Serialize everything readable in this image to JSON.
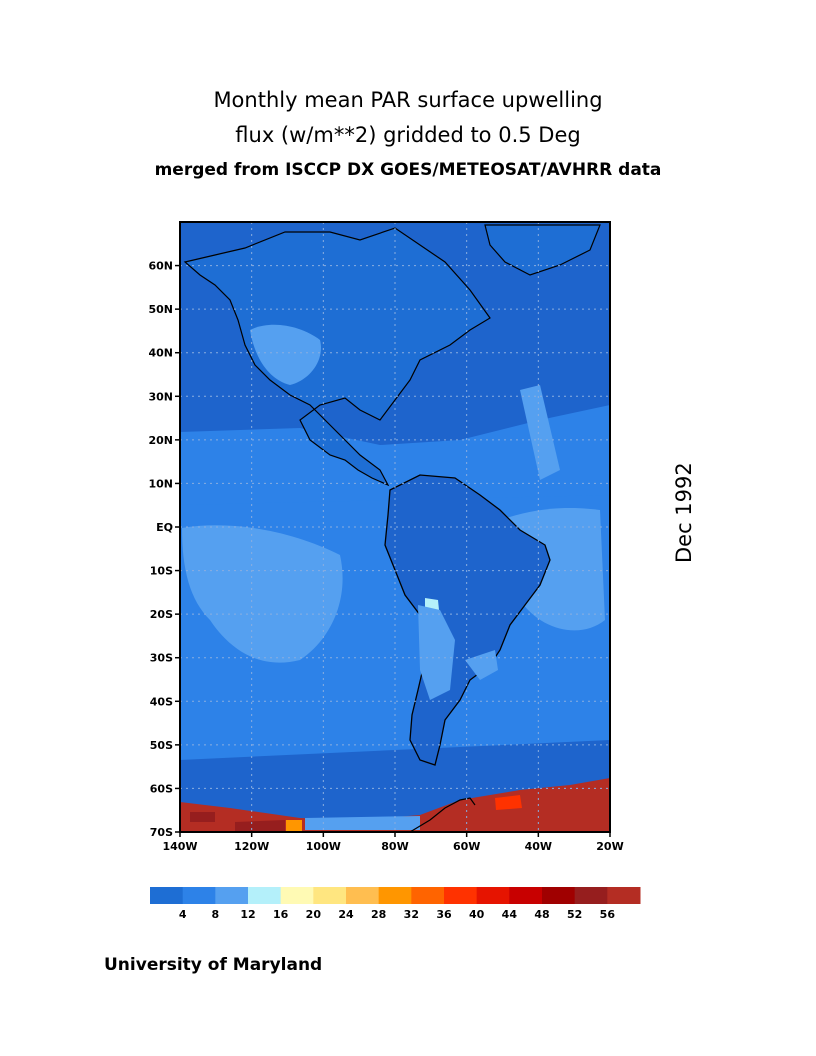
{
  "title": {
    "line1": "Monthly mean PAR surface upwelling",
    "line2": "flux (w/m**2) gridded to 0.5 Deg",
    "line3": "merged from ISCCP DX GOES/METEOSAT/AVHRR data"
  },
  "date_label": "Dec 1992",
  "credit": "University of Maryland",
  "map": {
    "lon_range": [
      -140,
      -20
    ],
    "lat_range": [
      -70,
      70
    ],
    "lon_ticks": [
      "140W",
      "120W",
      "100W",
      "80W",
      "60W",
      "40W",
      "20W"
    ],
    "lat_ticks": [
      "60N",
      "50N",
      "40N",
      "30N",
      "20N",
      "10N",
      "EQ",
      "10S",
      "20S",
      "30S",
      "40S",
      "50S",
      "60S",
      "70S"
    ],
    "ocean_color": "#1e64cc"
  },
  "colorbar": {
    "labels": [
      "4",
      "8",
      "12",
      "16",
      "20",
      "24",
      "28",
      "32",
      "36",
      "40",
      "44",
      "48",
      "52",
      "56"
    ],
    "colors": [
      "#1e6ed4",
      "#2d82e8",
      "#55a0f0",
      "#b4f0fa",
      "#fffab4",
      "#ffe680",
      "#ffbe50",
      "#ff9600",
      "#ff6400",
      "#ff3200",
      "#e61400",
      "#c80000",
      "#a00000",
      "#961e1e",
      "#b42d23"
    ]
  }
}
